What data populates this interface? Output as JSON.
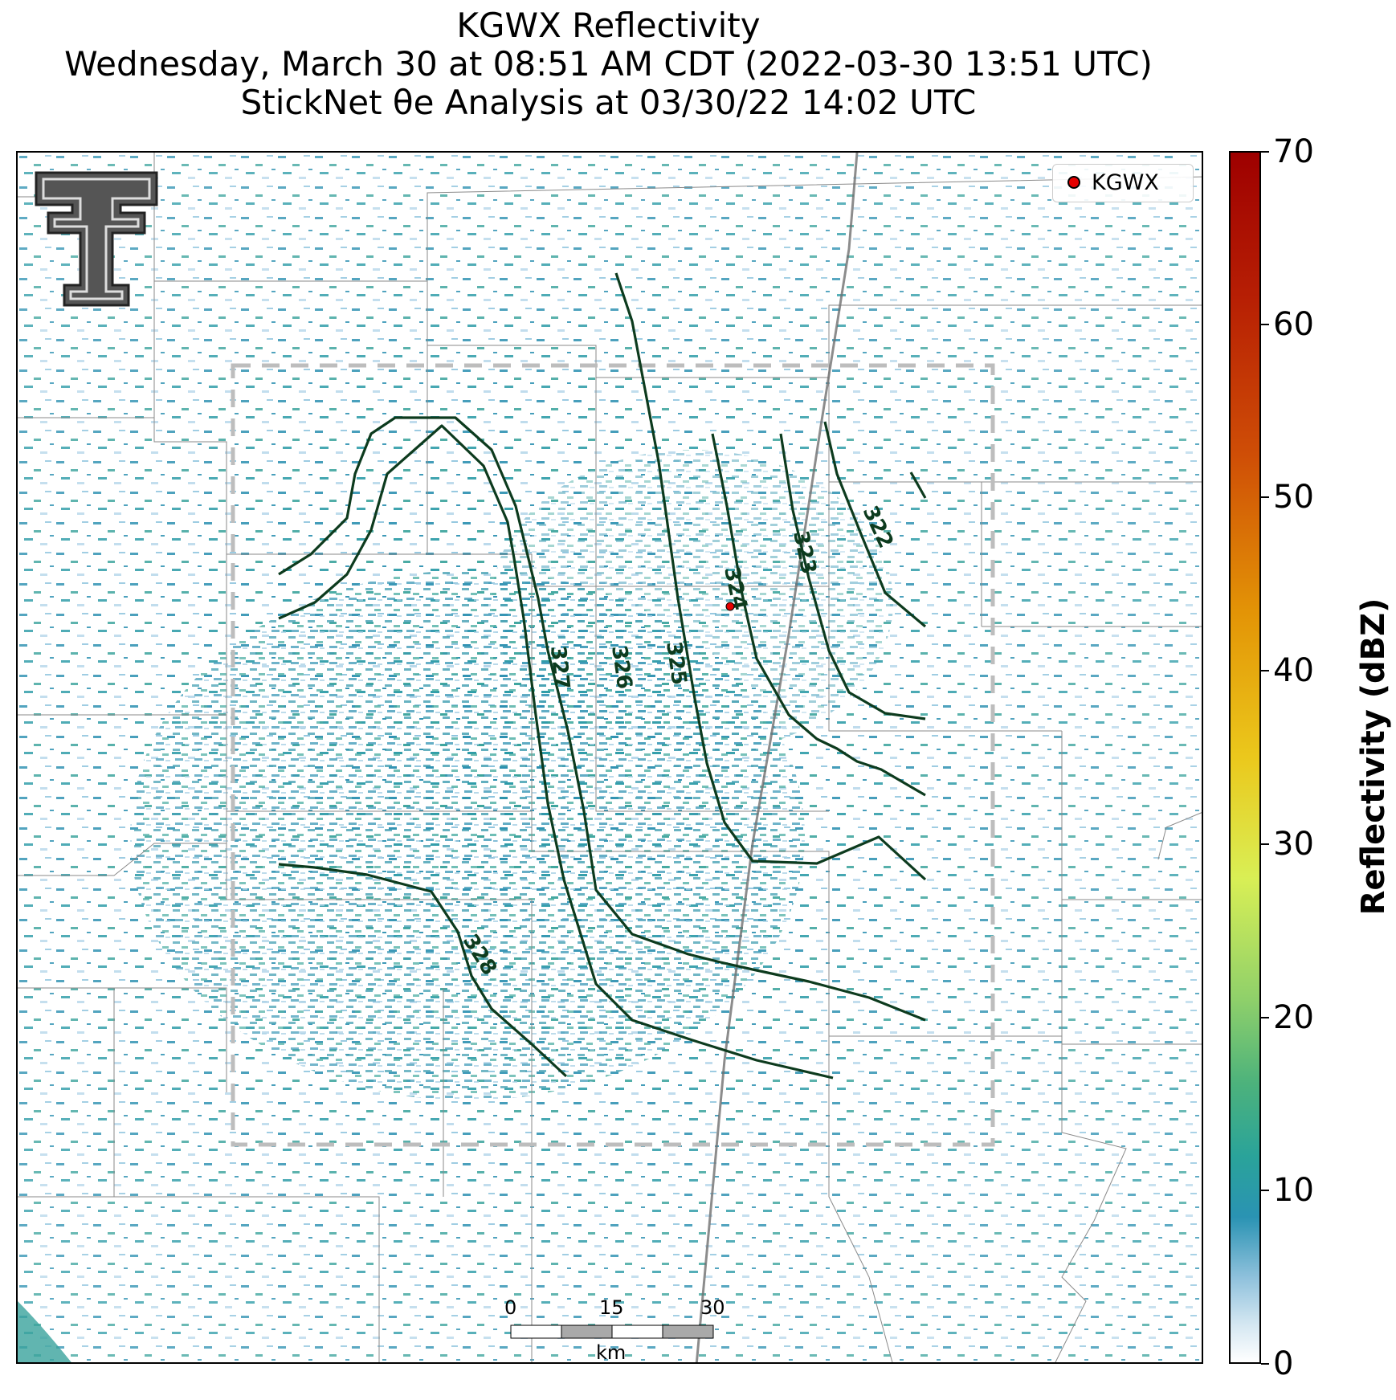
{
  "title": {
    "line1": "KGWX Reflectivity",
    "line2": "Wednesday, March 30 at 08:51 AM CDT (2022-03-30 13:51 UTC)",
    "line3": "StickNet θe Analysis at 03/30/22 14:02 UTC"
  },
  "legend": {
    "label": "KGWX",
    "marker_color": "#e60000"
  },
  "colorbar": {
    "label": "Reflectivity (dBZ)",
    "ticks": [
      "0",
      "10",
      "20",
      "30",
      "40",
      "50",
      "60",
      "70"
    ],
    "range": [
      0,
      70
    ]
  },
  "scale_bar": {
    "ticks": [
      "0",
      "15",
      "30"
    ],
    "unit": "km"
  },
  "contours": {
    "color": "#0d3b1e",
    "labels": [
      "322",
      "323",
      "324",
      "325",
      "326",
      "327",
      "328"
    ]
  },
  "logo": {
    "name": "Texas Tech Double T",
    "color": "#555555"
  }
}
